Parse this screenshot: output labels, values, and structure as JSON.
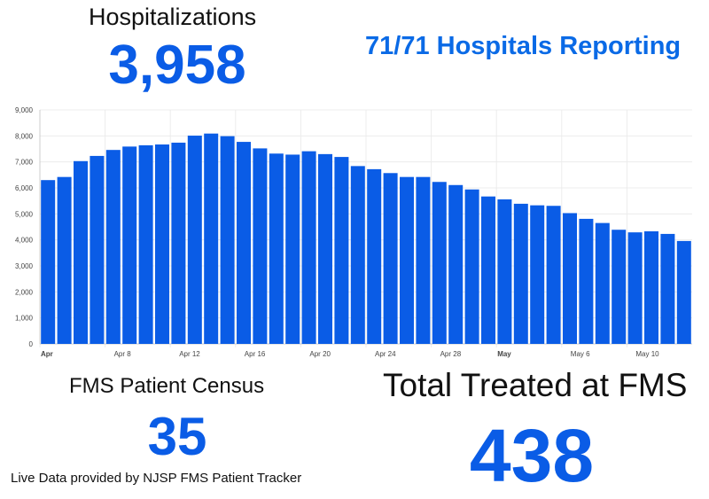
{
  "header": {
    "title": "Hospitalizations",
    "value": "3,958",
    "reporting": "71/71 Hospitals Reporting"
  },
  "footer": {
    "census_title": "FMS Patient Census",
    "census_value": "35",
    "source": "Live Data provided by NJSP FMS Patient Tracker",
    "treated_title": "Total Treated at FMS",
    "treated_value": "438"
  },
  "colors": {
    "bar": "#0a5ce6",
    "accent": "#0a6ae6"
  },
  "chart_data": {
    "type": "bar",
    "title": "",
    "xlabel": "",
    "ylabel": "",
    "ylim": [
      0,
      9000
    ],
    "grid": true,
    "yticks": [
      "0",
      "1,000",
      "2,000",
      "3,000",
      "4,000",
      "5,000",
      "6,000",
      "7,000",
      "8,000",
      "9,000"
    ],
    "xticks": [
      {
        "index": 0,
        "label": "Apr",
        "bold": true
      },
      {
        "index": 4,
        "label": "Apr 8"
      },
      {
        "index": 8,
        "label": "Apr 12"
      },
      {
        "index": 12,
        "label": "Apr 16"
      },
      {
        "index": 16,
        "label": "Apr 20"
      },
      {
        "index": 20,
        "label": "Apr 24"
      },
      {
        "index": 24,
        "label": "Apr 28"
      },
      {
        "index": 28,
        "label": "May",
        "bold": true
      },
      {
        "index": 32,
        "label": "May 6"
      },
      {
        "index": 36,
        "label": "May 10"
      }
    ],
    "values": [
      6300,
      6420,
      7030,
      7230,
      7460,
      7590,
      7640,
      7670,
      7740,
      8010,
      8090,
      7990,
      7770,
      7520,
      7320,
      7280,
      7410,
      7300,
      7190,
      6840,
      6720,
      6570,
      6420,
      6420,
      6230,
      6110,
      5940,
      5670,
      5560,
      5390,
      5330,
      5310,
      5030,
      4810,
      4650,
      4390,
      4290,
      4330,
      4230,
      3958
    ]
  }
}
